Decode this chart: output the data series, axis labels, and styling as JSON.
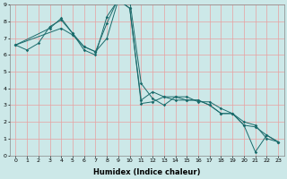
{
  "xlabel": "Humidex (Indice chaleur)",
  "xlim": [
    -0.5,
    23.5
  ],
  "ylim": [
    0,
    9
  ],
  "bg_color": "#cce8e8",
  "line_color": "#1a6b6b",
  "grid_color": "#e8a0a0",
  "line1_x": [
    0,
    1,
    2,
    3,
    4,
    5,
    6,
    7,
    8,
    9,
    10,
    11,
    12,
    13,
    14,
    15,
    16,
    17,
    18,
    19,
    20,
    21,
    22,
    23
  ],
  "line1_y": [
    6.6,
    6.3,
    6.7,
    7.7,
    8.1,
    7.3,
    6.3,
    6.0,
    8.3,
    9.3,
    8.8,
    3.1,
    3.2,
    3.5,
    3.3,
    3.3,
    3.3,
    3.0,
    2.5,
    2.5,
    1.8,
    0.2,
    1.2,
    0.8
  ],
  "line2_x": [
    0,
    3,
    4,
    5,
    6,
    7,
    8,
    9,
    10,
    11,
    12,
    13,
    14,
    15,
    16,
    17,
    18,
    19,
    20,
    21,
    22,
    23
  ],
  "line2_y": [
    6.6,
    7.6,
    8.2,
    7.3,
    6.5,
    6.2,
    7.9,
    9.4,
    9.3,
    4.3,
    3.4,
    3.0,
    3.5,
    3.5,
    3.2,
    3.2,
    2.8,
    2.5,
    1.8,
    1.7,
    1.2,
    0.8
  ],
  "line3_x": [
    0,
    4,
    5,
    6,
    7,
    8,
    9,
    10,
    11,
    12,
    13,
    14,
    15,
    16,
    17,
    18,
    19,
    20,
    21,
    22,
    23
  ],
  "line3_y": [
    6.6,
    7.6,
    7.2,
    6.5,
    6.2,
    7.0,
    9.3,
    8.8,
    3.3,
    3.8,
    3.5,
    3.5,
    3.3,
    3.3,
    3.0,
    2.5,
    2.5,
    2.0,
    1.8,
    1.0,
    0.8
  ],
  "xtick_labels": [
    "0",
    "1",
    "2",
    "3",
    "4",
    "5",
    "6",
    "7",
    "8",
    "9",
    "10",
    "11",
    "12",
    "13",
    "14",
    "15",
    "16",
    "17",
    "18",
    "19",
    "20",
    "21",
    "22",
    "23"
  ],
  "ytick_labels": [
    "0",
    "1",
    "2",
    "3",
    "4",
    "5",
    "6",
    "7",
    "8",
    "9"
  ],
  "xlabel_fontsize": 6,
  "tick_fontsize": 4.5,
  "linewidth": 0.7,
  "markersize": 1.8
}
